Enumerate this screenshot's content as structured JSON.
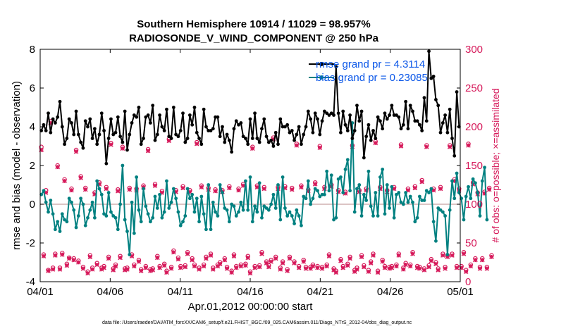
{
  "chart_data": {
    "type": "line",
    "title": "Southern Hemisphere 10914 / 11029 = 98.957%",
    "subtitle": "RADIOSONDE_V_WIND_COMPONENT @ 250 hPa",
    "xlabel": "Apr.01,2012 00:00:00 start",
    "ylabel": "rmse and bias (model - observation)",
    "y2label": "# of obs: o=possible; ×=assimilated",
    "footer": "data file: /Users/raeder/DAI/ATM_forcXX/CAM6_setup/f.e21.FHIST_BGC.f09_025.CAM6assim.011/Diags_NTrS_2012-04/obs_diag_output.nc",
    "xlim": [
      0,
      30
    ],
    "ylim": [
      -4,
      8
    ],
    "y2lim": [
      0,
      300
    ],
    "x_ticks": [
      0,
      5,
      10,
      15,
      20,
      25,
      30
    ],
    "x_tick_labels": [
      "04/01",
      "04/06",
      "04/11",
      "04/16",
      "04/21",
      "04/26",
      "05/01"
    ],
    "y_ticks": [
      -4,
      -2,
      0,
      2,
      4,
      6,
      8
    ],
    "y2_ticks": [
      0,
      50,
      100,
      150,
      200,
      250,
      300
    ],
    "zero_line": 0,
    "colors": {
      "rmse": "#000000",
      "bias": "#008080",
      "obs": "#d6195a",
      "legend_text": "#0b57e8",
      "zero": "#c8a0a0"
    },
    "legend": [
      {
        "name": "rmse",
        "label": "rmse grand pr = 4.3114"
      },
      {
        "name": "bias",
        "label": "bias grand pr = 0.23085"
      }
    ],
    "rmse": [
      3.8,
      4.1,
      3.8,
      4.7,
      3.7,
      4.4,
      4.2,
      4.5,
      5.3,
      4.0,
      3.1,
      3.4,
      4.4,
      4.2,
      3.6,
      4.8,
      3.6,
      3.2,
      2.9,
      4.3,
      4.0,
      4.4,
      3.4,
      3.9,
      3.1,
      3.6,
      4.7,
      3.8,
      2.1,
      3.4,
      4.4,
      3.6,
      3.7,
      4.5,
      3.5,
      3.2,
      4.8,
      2.8,
      3.6,
      4.2,
      4.6,
      4.5,
      5.0,
      3.1,
      3.4,
      4.5,
      4.6,
      4.2,
      5.1,
      3.3,
      3.6,
      4.6,
      4.0,
      3.8,
      4.9,
      3.5,
      3.4,
      5.0,
      3.6,
      3.5,
      3.8,
      4.7,
      3.2,
      3.4,
      4.6,
      4.1,
      5.0,
      3.7,
      3.4,
      3.1,
      4.9,
      4.0,
      3.8,
      3.8,
      3.9,
      4.5,
      4.5,
      3.5,
      4.0,
      3.2,
      3.6,
      3.3,
      2.7,
      3.9,
      4.3,
      4.1,
      4.2,
      3.5,
      3.4,
      3.1,
      4.4,
      3.4,
      4.7,
      3.4,
      3.2,
      3.9,
      4.4,
      3.5,
      3.2,
      3.3,
      3.0,
      3.7,
      3.1,
      4.4,
      4.0,
      4.0,
      4.1,
      3.7,
      3.8,
      3.3,
      3.6,
      4.0,
      3.1,
      3.6,
      4.0,
      4.8,
      4.4,
      3.7,
      4.7,
      4.4,
      3.6,
      4.3,
      4.8,
      4.7,
      4.6,
      4.7,
      4.6,
      7.1,
      4.7,
      3.7,
      4.8,
      4.1,
      3.8,
      4.6,
      3.4,
      3.8,
      5.1,
      4.3,
      4.8,
      2.4,
      3.5,
      4.1,
      3.3,
      3.8,
      3.4,
      4.5,
      4.3,
      3.9,
      4.7,
      4.4,
      4.6,
      5.1,
      4.6,
      4.6,
      4.5,
      3.9,
      4.1,
      5.3,
      3.9,
      5.1,
      4.8,
      4.3,
      4.3,
      4.1,
      3.8,
      5.5,
      4.3,
      7.9,
      6.5,
      6.6,
      5.4,
      5.1,
      3.7,
      4.2,
      4.6,
      3.7,
      4.9,
      3.4,
      2.5,
      5.8,
      4.0
    ],
    "bias": [
      0.5,
      0.7,
      0.1,
      -0.4,
      0.2,
      -0.5,
      -1.3,
      -0.9,
      -1.4,
      -0.5,
      -0.8,
      -0.9,
      0.3,
      0.1,
      -0.3,
      -1.2,
      -0.6,
      0.3,
      0.0,
      -1.1,
      -0.7,
      -0.3,
      0.1,
      -0.7,
      1.2,
      0.8,
      0.5,
      -0.5,
      -0.6,
      0.6,
      -0.4,
      -0.6,
      -0.7,
      -1.3,
      0.0,
      2.0,
      -0.8,
      -1.4,
      -2.6,
      0.1,
      -1.5,
      1.4,
      -0.3,
      -0.9,
      0.8,
      -0.1,
      -0.5,
      -0.9,
      -0.7,
      0.4,
      -0.2,
      0.5,
      -0.7,
      -0.4,
      1.2,
      -0.2,
      0.1,
      0.8,
      0.3,
      -0.4,
      -1.1,
      -0.9,
      -0.6,
      0.8,
      0.3,
      0.5,
      -0.4,
      0.3,
      -0.9,
      0.4,
      -0.5,
      -1.3,
      1.0,
      -1.3,
      0.1,
      -0.4,
      -0.6,
      1.0,
      0.6,
      -0.2,
      -0.3,
      -0.9,
      0.0,
      -0.1,
      -0.6,
      -0.4,
      0.1,
      -0.3,
      1.2,
      -0.3,
      1.4,
      -0.9,
      -0.1,
      -0.4,
      1.1,
      -0.7,
      -0.1,
      -0.2,
      -0.3,
      0.0,
      0.5,
      -0.2,
      1.0,
      -0.8,
      1.4,
      -0.2,
      -0.6,
      -0.4,
      -0.6,
      -1.0,
      -0.3,
      -0.6,
      -1.1,
      0.4,
      0.3,
      1.2,
      0.0,
      0.3,
      0.8,
      0.7,
      0.4,
      0.5,
      0.5,
      1.7,
      0.7,
      1.5,
      -0.8,
      -0.7,
      1.3,
      1.4,
      0.6,
      1.8,
      2.3,
      0.7,
      4.2,
      -0.4,
      0.8,
      1.0,
      -0.6,
      0.5,
      0.2,
      1.7,
      -0.1,
      -0.6,
      0.6,
      -0.6,
      1.4,
      1.8,
      -0.5,
      1.0,
      -0.2,
      0.9,
      -0.7,
      0.5,
      0.6,
      0.1,
      0.0,
      0.6,
      0.1,
      0.4,
      0.1,
      -0.9,
      -0.7,
      0.4,
      0.2,
      0.2,
      0.7,
      0.6,
      0.8,
      -0.9,
      -1.9,
      -0.2,
      -0.3,
      -0.4,
      -0.6,
      -2.6,
      -0.3,
      1.2,
      0.3,
      1.6,
      0.6,
      0.3,
      -0.8,
      0.4,
      0.9,
      0.3,
      1.3,
      1.1,
      0.6,
      -0.6,
      1.2,
      1.9,
      -0.8
    ],
    "obs_possible": [
      174,
      35,
      118,
      15,
      207,
      18,
      36,
      150,
      18,
      37,
      132,
      23,
      31,
      120,
      30,
      170,
      27,
      136,
      19,
      121,
      13,
      34,
      18,
      115,
      24,
      128,
      18,
      20,
      122,
      32,
      179,
      17,
      22,
      119,
      33,
      174,
      17,
      18,
      121,
      35,
      22,
      120,
      28,
      16,
      124,
      20,
      171,
      16,
      17,
      126,
      33,
      20,
      117,
      23,
      14,
      184,
      19,
      40,
      118,
      31,
      20,
      123,
      21,
      38,
      118,
      30,
      22,
      180,
      18,
      124,
      22,
      32,
      121,
      36,
      18,
      119,
      22,
      25,
      118,
      30,
      19,
      123,
      14,
      35,
      20,
      120,
      22,
      126,
      23,
      33,
      13,
      174,
      20,
      124,
      21,
      38,
      122,
      26,
      21,
      28,
      186,
      32,
      122,
      18,
      26,
      123,
      16,
      32,
      121,
      26,
      178,
      20,
      124,
      28,
      19,
      119,
      19,
      22,
      128,
      20,
      175,
      19,
      122,
      22,
      35,
      125,
      17,
      14,
      118,
      29,
      20,
      116,
      23,
      32,
      176,
      15,
      18,
      118,
      34,
      21,
      120,
      15,
      26,
      36,
      181,
      14,
      122,
      28,
      20,
      118,
      19,
      20,
      122,
      22,
      36,
      177,
      18,
      24,
      120,
      22,
      38,
      123,
      20,
      19,
      131,
      17,
      176,
      21,
      29,
      120,
      25,
      17,
      122,
      36,
      19,
      34,
      176,
      36,
      132,
      20,
      120,
      20,
      38,
      15,
      178,
      22,
      128,
      30,
      115,
      19,
      30,
      116,
      19,
      121,
      34
    ],
    "obs_assimilated": [
      170,
      33,
      115,
      14,
      205,
      16,
      34,
      148,
      16,
      35,
      130,
      21,
      30,
      118,
      28,
      168,
      25,
      134,
      17,
      119,
      11,
      32,
      16,
      113,
      22,
      126,
      16,
      18,
      120,
      30,
      177,
      15,
      20,
      117,
      31,
      172,
      15,
      16,
      119,
      33,
      20,
      118,
      26,
      14,
      122,
      18,
      169,
      14,
      15,
      124,
      31,
      18,
      115,
      21,
      12,
      182,
      17,
      38,
      116,
      29,
      18,
      121,
      19,
      36,
      116,
      28,
      20,
      178,
      16,
      122,
      20,
      30,
      119,
      34,
      16,
      117,
      20,
      23,
      116,
      28,
      17,
      121,
      12,
      33,
      18,
      118,
      20,
      124,
      21,
      31,
      11,
      172,
      18,
      122,
      19,
      36,
      120,
      24,
      19,
      26,
      184,
      30,
      120,
      16,
      24,
      121,
      14,
      30,
      119,
      24,
      176,
      18,
      122,
      26,
      17,
      117,
      17,
      20,
      126,
      18,
      173,
      17,
      120,
      20,
      33,
      123,
      15,
      12,
      116,
      27,
      18,
      114,
      21,
      30,
      174,
      13,
      16,
      116,
      32,
      19,
      118,
      13,
      24,
      34,
      179,
      12,
      120,
      26,
      18,
      116,
      17,
      18,
      120,
      20,
      34,
      175,
      16,
      22,
      118,
      20,
      36,
      121,
      18,
      17,
      129,
      15,
      174,
      19,
      27,
      118,
      23,
      15,
      120,
      34,
      17,
      32,
      174,
      34,
      130,
      18,
      118,
      18,
      36,
      13,
      176,
      20,
      126,
      28,
      113,
      17,
      28,
      114,
      17,
      119,
      32
    ]
  }
}
